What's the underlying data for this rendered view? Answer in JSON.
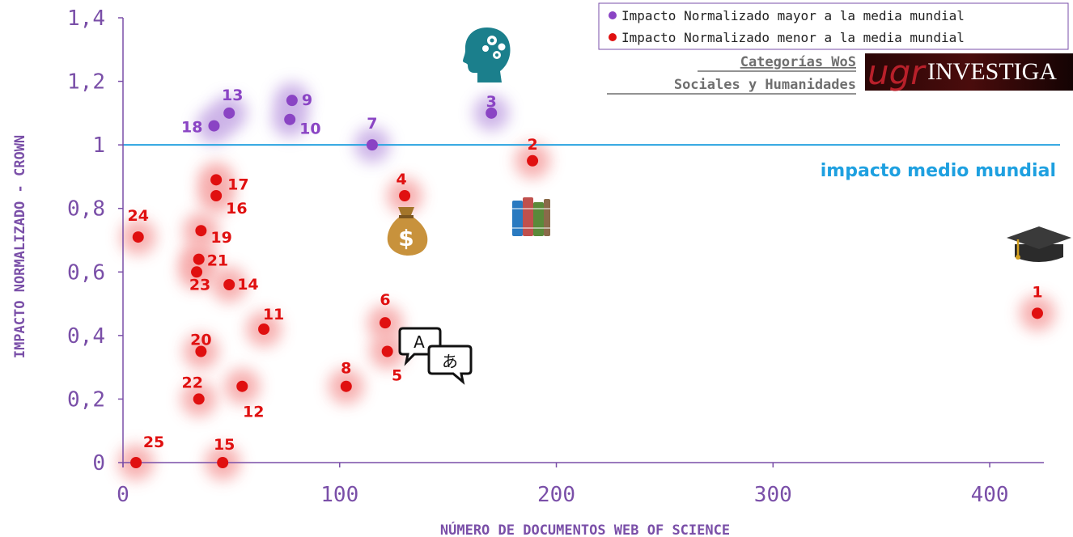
{
  "chart_data": {
    "type": "scatter",
    "xlabel": "NÚMERO DE DOCUMENTOS WEB OF SCIENCE",
    "ylabel": "IMPACTO NORMALIZADO - CROWN",
    "xlim": [
      0,
      425
    ],
    "ylim": [
      0,
      1.4
    ],
    "x_ticks": [
      0,
      100,
      200,
      300,
      400
    ],
    "x_tick_labels": [
      "0",
      "100",
      "200",
      "300",
      "400"
    ],
    "y_ticks": [
      0,
      0.2,
      0.4,
      0.6,
      0.8,
      1.0,
      1.2,
      1.4
    ],
    "y_tick_labels": [
      "0",
      "0,2",
      "0,4",
      "0,6",
      "0,8",
      "1",
      "1,2",
      "1,4"
    ],
    "grid": false,
    "legend_position": "top-right",
    "legend": [
      {
        "label": "Impacto Normalizado mayor a la media mundial",
        "color": "#8a44c4"
      },
      {
        "label": "Impacto Normalizado menor a la media mundial",
        "color": "#e01010"
      }
    ],
    "reference_line": {
      "y": 1.0,
      "label": "impacto medio mundial",
      "color": "#29a3e0"
    },
    "colors": {
      "above": "#8a44c4",
      "below": "#e01010",
      "axis": "#7a4fa8",
      "ref_label": "#1ea0e0"
    },
    "points": [
      {
        "label": "1",
        "x": 422,
        "y": 0.47,
        "group": "below"
      },
      {
        "label": "2",
        "x": 189,
        "y": 0.95,
        "group": "below"
      },
      {
        "label": "3",
        "x": 170,
        "y": 1.1,
        "group": "above"
      },
      {
        "label": "4",
        "x": 130,
        "y": 0.84,
        "group": "below"
      },
      {
        "label": "5",
        "x": 122,
        "y": 0.35,
        "group": "below"
      },
      {
        "label": "6",
        "x": 121,
        "y": 0.44,
        "group": "below"
      },
      {
        "label": "7",
        "x": 115,
        "y": 1.0,
        "group": "above"
      },
      {
        "label": "8",
        "x": 103,
        "y": 0.24,
        "group": "below"
      },
      {
        "label": "9",
        "x": 78,
        "y": 1.14,
        "group": "above"
      },
      {
        "label": "10",
        "x": 77,
        "y": 1.08,
        "group": "above"
      },
      {
        "label": "11",
        "x": 65,
        "y": 0.42,
        "group": "below"
      },
      {
        "label": "12",
        "x": 55,
        "y": 0.24,
        "group": "below"
      },
      {
        "label": "13",
        "x": 49,
        "y": 1.1,
        "group": "above"
      },
      {
        "label": "14",
        "x": 49,
        "y": 0.56,
        "group": "below"
      },
      {
        "label": "15",
        "x": 46,
        "y": 0.0,
        "group": "below"
      },
      {
        "label": "16",
        "x": 43,
        "y": 0.84,
        "group": "below"
      },
      {
        "label": "17",
        "x": 43,
        "y": 0.89,
        "group": "below"
      },
      {
        "label": "18",
        "x": 42,
        "y": 1.06,
        "group": "above"
      },
      {
        "label": "19",
        "x": 36,
        "y": 0.73,
        "group": "below"
      },
      {
        "label": "20",
        "x": 36,
        "y": 0.35,
        "group": "below"
      },
      {
        "label": "21",
        "x": 35,
        "y": 0.64,
        "group": "below"
      },
      {
        "label": "22",
        "x": 35,
        "y": 0.2,
        "group": "below"
      },
      {
        "label": "23",
        "x": 34,
        "y": 0.6,
        "group": "below"
      },
      {
        "label": "24",
        "x": 7,
        "y": 0.71,
        "group": "below"
      },
      {
        "label": "25",
        "x": 6,
        "y": 0.0,
        "group": "below"
      }
    ]
  },
  "header": {
    "categories_line1": "Categorías WoS",
    "categories_line2": "Sociales y Humanidades",
    "logo_ugr": "ugr",
    "logo_investiga": "INVESTIGA"
  },
  "icons": {
    "head": "head-gears-icon",
    "books": "books-icon",
    "money": "money-bag-icon",
    "languages": "language-bubbles-icon",
    "graduation": "graduation-cap-icon"
  }
}
